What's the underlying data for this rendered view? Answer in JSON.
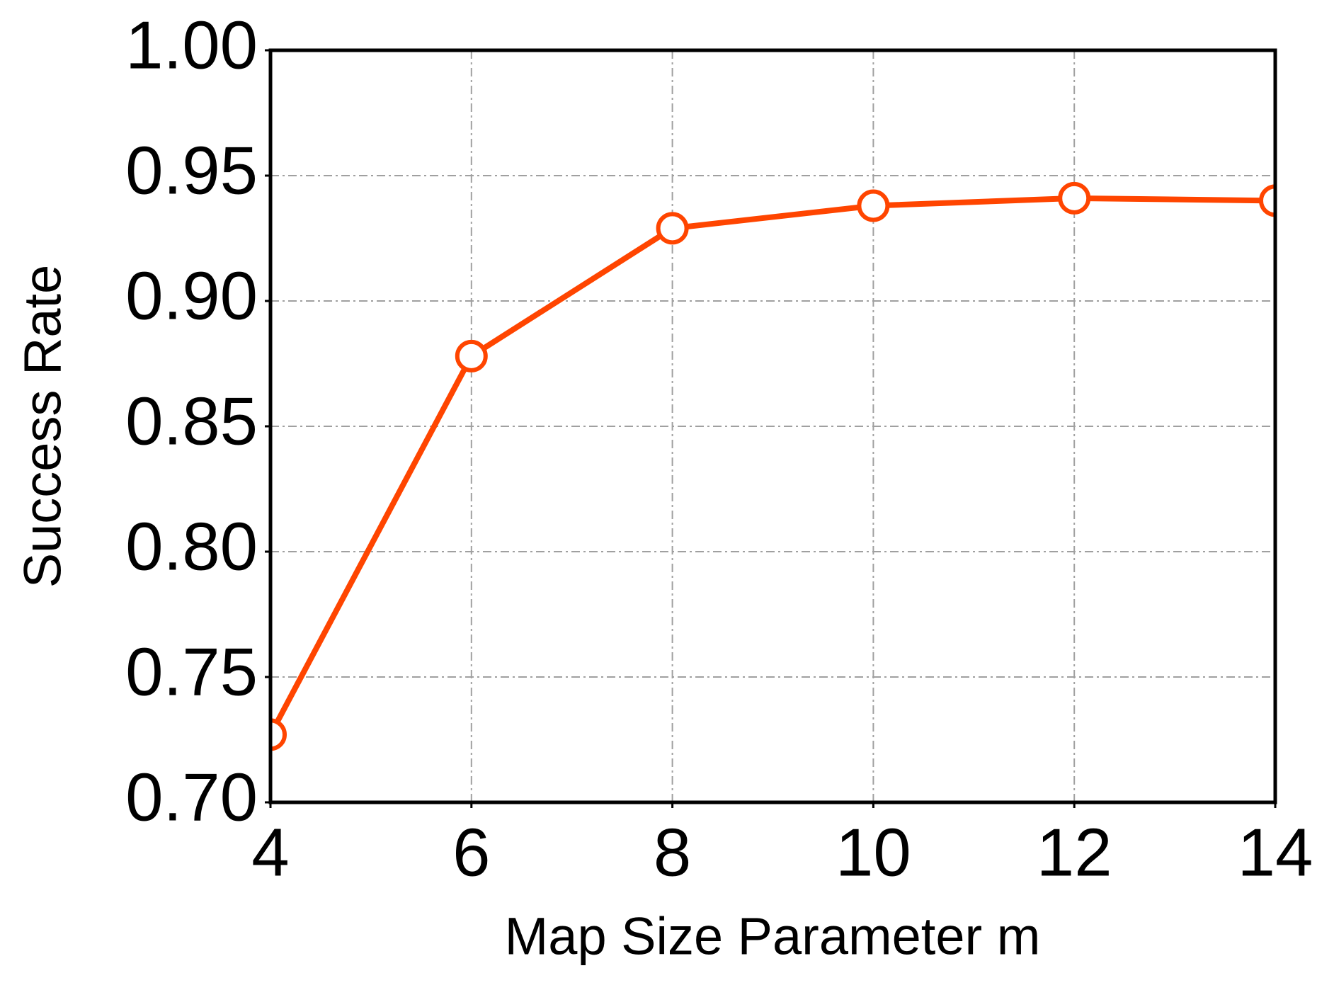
{
  "chart_data": {
    "type": "line",
    "x_label": "Map Size Parameter m",
    "y_label": "Success Rate",
    "x": [
      4,
      6,
      8,
      10,
      12,
      14
    ],
    "series": [
      {
        "color": "#ff4500",
        "values": [
          0.727,
          0.878,
          0.929,
          0.938,
          0.941,
          0.94
        ]
      }
    ],
    "xlim": [
      4,
      14
    ],
    "xticks": [
      4,
      6,
      8,
      10,
      12,
      14
    ],
    "ylim": [
      0.7,
      1.0
    ],
    "yticks": [
      {
        "value": 0.7,
        "label": "0.70"
      },
      {
        "value": 0.75,
        "label": "0.75"
      },
      {
        "value": 0.8,
        "label": "0.80"
      },
      {
        "value": 0.85,
        "label": "0.85"
      },
      {
        "value": 0.9,
        "label": "0.90"
      },
      {
        "value": 0.95,
        "label": "0.95"
      },
      {
        "value": 1.0,
        "label": "1.00"
      }
    ],
    "grid": true
  }
}
